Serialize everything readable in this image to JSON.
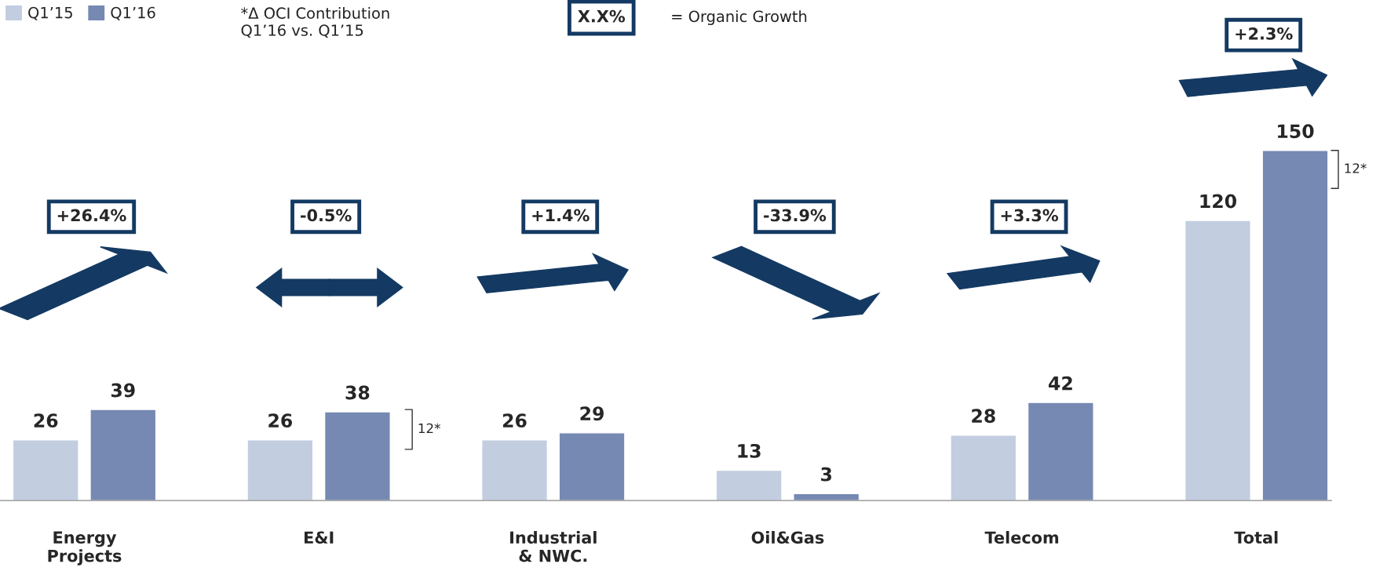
{
  "chart_data": {
    "type": "bar",
    "categories": [
      "Energy\nProjects",
      "E&I",
      "Industrial\n& NWC.",
      "Oil&Gas",
      "Telecom",
      "Total"
    ],
    "series": [
      {
        "name": "Q1’15",
        "color": "#c2cde0",
        "values": [
          26,
          26,
          26,
          13,
          28,
          120
        ]
      },
      {
        "name": "Q1’16",
        "color": "#7589b2",
        "values": [
          39,
          38,
          29,
          3,
          42,
          150
        ]
      }
    ],
    "data_labels": true,
    "legend": "top left",
    "grid": false,
    "annotations": [
      "*Δ OCI Contribution\nQ1’16 vs. Q1’15",
      "X.X%",
      "= Organic Growth",
      "+26.4%",
      "-0.5%",
      "+1.4%",
      "-33.9%",
      "+3.3%",
      "+2.3%",
      "12*",
      "12*"
    ]
  }
}
